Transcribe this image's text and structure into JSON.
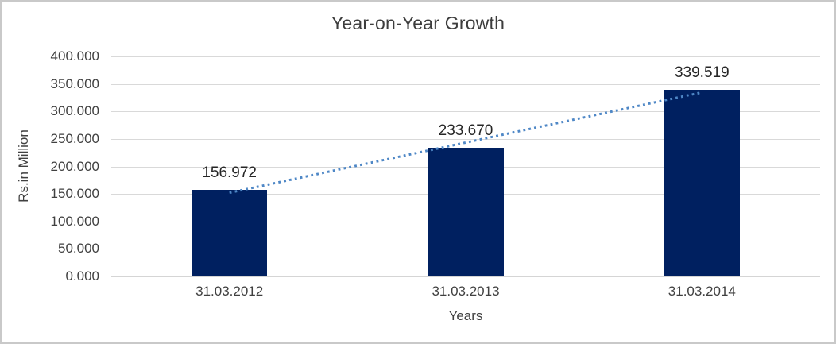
{
  "chart_data": {
    "type": "bar",
    "title": "Year-on-Year Growth",
    "categories": [
      "31.03.2012",
      "31.03.2013",
      "31.03.2014"
    ],
    "values": [
      156.972,
      233.67,
      339.519
    ],
    "data_labels": [
      "156.972",
      "233.670",
      "339.519"
    ],
    "xlabel": "Years",
    "ylabel": "Rs.in Million",
    "ylim": [
      0,
      400
    ],
    "ytick_step": 50,
    "ytick_labels": [
      "400.000",
      "350.000",
      "300.000",
      "250.000",
      "200.000",
      "150.000",
      "100.000",
      "50.000",
      "0.000"
    ],
    "grid": true,
    "legend": "none",
    "trendline": {
      "type": "linear",
      "style": "dotted",
      "color": "#4E87C6"
    },
    "colors": {
      "bar": "#002060",
      "gridline": "#D9D9D9",
      "axis_line": "#D5D5D5",
      "title_text": "#3D3D3D",
      "tick_text": "#404040",
      "data_label_text": "#262626",
      "chart_border": "#C9C9C9",
      "background": "#FFFFFF"
    }
  }
}
